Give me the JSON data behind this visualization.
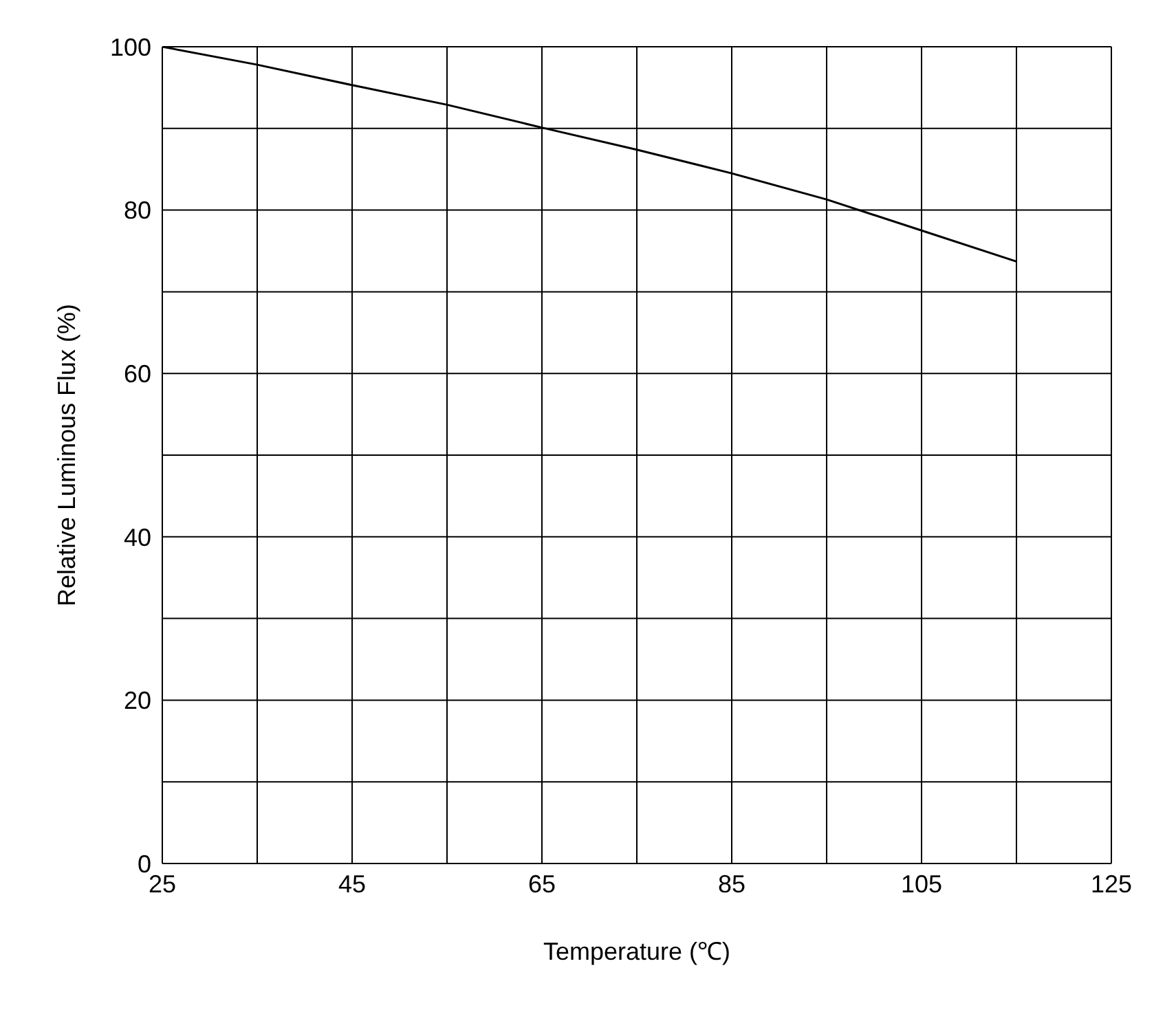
{
  "chart_data": {
    "type": "line",
    "xlabel": "Temperature (℃)",
    "ylabel": "Relative Luminous Flux (%)",
    "x": [
      25,
      35,
      45,
      55,
      65,
      75,
      85,
      95,
      105,
      115
    ],
    "series": [
      {
        "color": "#000000",
        "values": [
          100,
          97.8,
          95.3,
          92.9,
          90.1,
          87.4,
          84.5,
          81.3,
          77.5,
          73.7
        ]
      }
    ],
    "xlim": [
      25,
      125
    ],
    "xticks": [
      25,
      {
        "value": 35,
        "label": null
      },
      45,
      {
        "value": 55,
        "label": null
      },
      65,
      {
        "value": 75,
        "label": null
      },
      85,
      {
        "value": 95,
        "label": null
      },
      105,
      {
        "value": 115,
        "label": null
      },
      125
    ],
    "ylim": [
      0,
      100
    ],
    "yticks": [
      0,
      {
        "value": 10,
        "label": null
      },
      20,
      {
        "value": 30,
        "label": null
      },
      40,
      {
        "value": 50,
        "label": null
      },
      60,
      {
        "value": 70,
        "label": null
      },
      80,
      {
        "value": 90,
        "label": null
      },
      100
    ],
    "grid": true,
    "marker": "none",
    "line_style": "solid",
    "legend": false
  }
}
